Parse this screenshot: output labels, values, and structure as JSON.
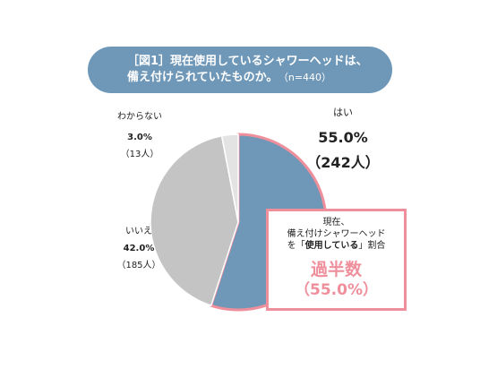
{
  "title": {
    "line1": "［図1］現在使用しているシャワーヘッドは、",
    "line2": "備え付けられていたものか。",
    "n": "（n=440）"
  },
  "callout": {
    "line1": "現在、",
    "line2": "備え付けシャワーヘッド",
    "line3_pre": "を「",
    "line3_strong": "使用している",
    "line3_post": "」割合",
    "highlight": "過半数",
    "highlight_pct": "（55.0%）"
  },
  "colors": {
    "yes": "#6e97b8",
    "no": "#c4c4c4",
    "unknown": "#e3e3e3",
    "accent": "#ef8f9c"
  },
  "chart_data": {
    "type": "pie",
    "title": "［図1］現在使用しているシャワーヘッドは、備え付けられていたものか。",
    "slices": [
      {
        "label": "はい",
        "percent": 55.0,
        "count": "（242人）",
        "percent_label": "55.0%"
      },
      {
        "label": "いいえ",
        "percent": 42.0,
        "count": "（185人）",
        "percent_label": "42.0%"
      },
      {
        "label": "わからない",
        "percent": 3.0,
        "count": "（13人）",
        "percent_label": "3.0%"
      }
    ]
  }
}
